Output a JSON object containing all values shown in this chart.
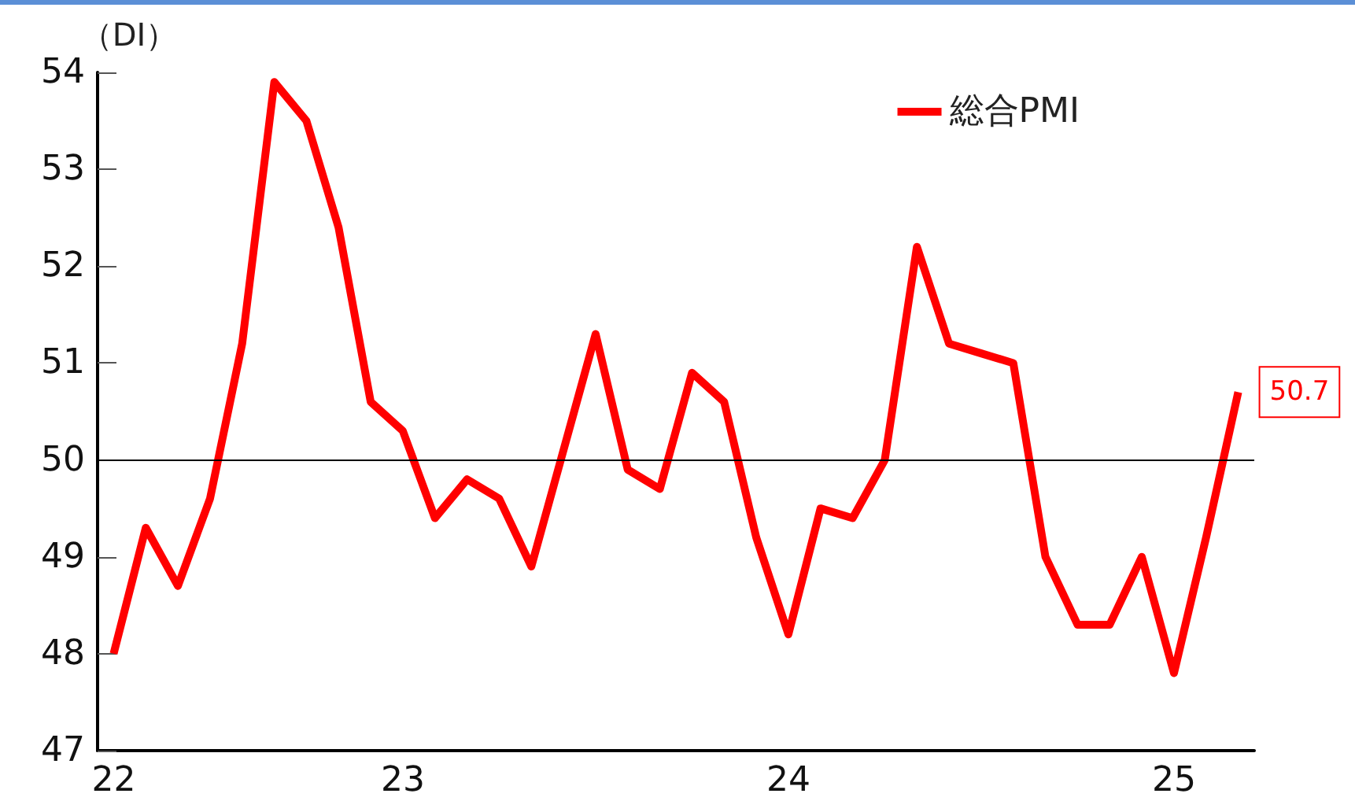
{
  "chart_data": {
    "type": "line",
    "ylabel": "（DI）",
    "categories": [
      "22",
      null,
      null,
      null,
      null,
      null,
      null,
      null,
      null,
      "23",
      null,
      null,
      null,
      null,
      null,
      null,
      null,
      null,
      null,
      null,
      null,
      "24",
      null,
      null,
      null,
      null,
      null,
      null,
      null,
      null,
      null,
      null,
      null,
      "25",
      null,
      null
    ],
    "series": [
      {
        "name": "総合PMI",
        "color": "#ff0000",
        "values": [
          48.0,
          49.3,
          48.7,
          49.6,
          51.2,
          53.9,
          53.5,
          52.4,
          50.6,
          50.3,
          49.4,
          49.8,
          49.6,
          48.9,
          50.1,
          51.3,
          49.9,
          49.7,
          50.9,
          50.6,
          49.2,
          48.2,
          49.5,
          49.4,
          50.0,
          52.2,
          51.2,
          51.1,
          51.0,
          49.0,
          48.3,
          48.3,
          49.0,
          47.8,
          49.2,
          50.7
        ],
        "value_labels": [
          null,
          null,
          null,
          null,
          null,
          null,
          null,
          null,
          null,
          null,
          null,
          null,
          null,
          null,
          null,
          null,
          null,
          null,
          null,
          null,
          null,
          null,
          null,
          null,
          null,
          null,
          null,
          null,
          null,
          null,
          null,
          null,
          null,
          null,
          null,
          "50.7"
        ]
      }
    ],
    "ylim": [
      47,
      54
    ],
    "yticks": [
      47,
      48,
      49,
      50,
      51,
      52,
      53,
      54
    ],
    "ref_lines": [
      {
        "axis": "y",
        "value": 50,
        "color": "#000000"
      }
    ],
    "grid": false,
    "legend": "top right",
    "line_style": "solid"
  }
}
